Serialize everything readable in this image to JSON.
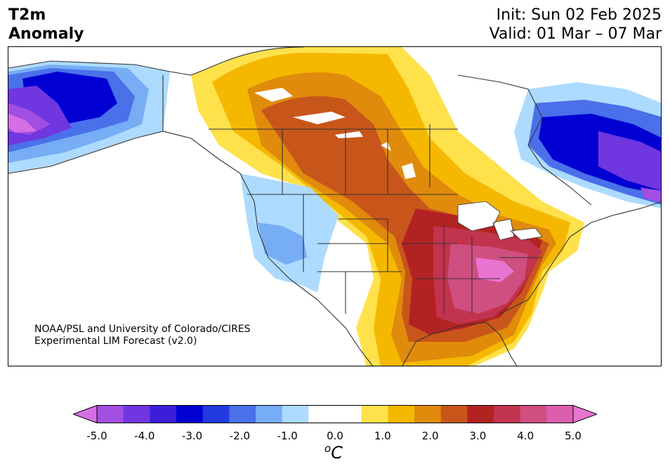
{
  "title": {
    "variable_line1": "T2m",
    "variable_line2": "Anomaly",
    "init": "Init: Sun 02 Feb 2025",
    "valid": "Valid: 01 Mar – 07 Mar"
  },
  "credit": {
    "line1": "NOAA/PSL and University of Colorado/CIRES",
    "line2": "Experimental LIM Forecast (v2.0)"
  },
  "colorbar": {
    "colors": [
      "#d66ee8",
      "#a24ee0",
      "#7036e0",
      "#3a1ed8",
      "#0000d2",
      "#2239e0",
      "#4a70ea",
      "#76adf5",
      "#addbff",
      "#ffffff",
      "#ffffff",
      "#ffe14c",
      "#f5b800",
      "#e08b0c",
      "#c8561a",
      "#b32222",
      "#c2334e",
      "#cf4f80",
      "#dc5fad",
      "#e874d2"
    ],
    "ticks": [
      "-5.0",
      "-4.0",
      "-3.0",
      "-2.0",
      "-1.0",
      "0.0",
      "1.0",
      "2.0",
      "3.0",
      "4.0",
      "5.0"
    ],
    "unit_base": "C",
    "unit_sup": "o"
  },
  "map": {
    "region": "North America",
    "anomaly_pattern": "warm over central/eastern US and central Canada, cold over Alaska, eastern Canada and the US Interior West"
  }
}
